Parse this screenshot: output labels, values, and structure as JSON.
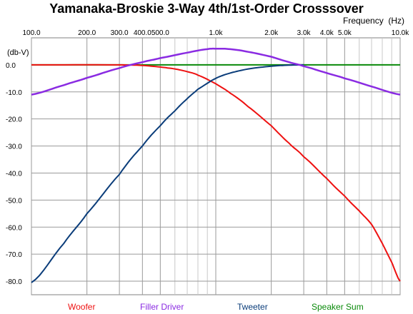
{
  "title": "Yamanaka-Broskie 3-Way 4th/1st-Order Crosssover",
  "x_unit_label": "Frequency  (Hz)",
  "y_unit_label": "(db-V)",
  "colors": {
    "woofer": "#ee1111",
    "filler": "#8a2be2",
    "tweeter": "#0b3d7a",
    "sum": "#0a8a0a",
    "grid": "#9a9a9a",
    "grid_minor": "#c8c8c8"
  },
  "chart_data": {
    "type": "line",
    "title": "Yamanaka-Broskie 3-Way 4th/1st-Order Crosssover",
    "xlabel": "Frequency  (Hz)",
    "ylabel": "(db-V)",
    "x_scale": "log",
    "xlim": [
      100,
      10000
    ],
    "ylim": [
      -85,
      10
    ],
    "grid": true,
    "legend_position": "bottom",
    "x_tick_labels": [
      {
        "value": 100,
        "label": "100.0"
      },
      {
        "value": 200,
        "label": "200.0"
      },
      {
        "value": 300,
        "label": "300.0"
      },
      {
        "value": 400,
        "label": "400.0"
      },
      {
        "value": 500,
        "label": "500.0"
      },
      {
        "value": 1000,
        "label": "1.0k"
      },
      {
        "value": 2000,
        "label": "2.0k"
      },
      {
        "value": 3000,
        "label": "3.0k"
      },
      {
        "value": 4000,
        "label": "4.0k"
      },
      {
        "value": 5000,
        "label": "5.0k"
      },
      {
        "value": 10000,
        "label": "10.0k"
      }
    ],
    "y_tick_labels": [
      {
        "value": 0,
        "label": "0.0"
      },
      {
        "value": -10,
        "label": "-10.0"
      },
      {
        "value": -20,
        "label": "-20.0"
      },
      {
        "value": -30,
        "label": "-30.0"
      },
      {
        "value": -40,
        "label": "-40.0"
      },
      {
        "value": -50,
        "label": "-50.0"
      },
      {
        "value": -60,
        "label": "-60.0"
      },
      {
        "value": -70,
        "label": "-70.0"
      },
      {
        "value": -80,
        "label": "-80.0"
      }
    ],
    "series": [
      {
        "name": "Woofer",
        "color": "#ee1111",
        "points": [
          [
            100,
            0
          ],
          [
            300,
            0
          ],
          [
            400,
            -0.2
          ],
          [
            500,
            -0.8
          ],
          [
            600,
            -1.5
          ],
          [
            700,
            -2.5
          ],
          [
            800,
            -3.8
          ],
          [
            1000,
            -7
          ],
          [
            1200,
            -10.5
          ],
          [
            1500,
            -15.5
          ],
          [
            2000,
            -22.5
          ],
          [
            2500,
            -29
          ],
          [
            3000,
            -34
          ],
          [
            4000,
            -42
          ],
          [
            5000,
            -48.5
          ],
          [
            6000,
            -54
          ],
          [
            7000,
            -59
          ],
          [
            8000,
            -66
          ],
          [
            9000,
            -73
          ],
          [
            10000,
            -80
          ]
        ]
      },
      {
        "name": "Filler Driver",
        "color": "#8a2be2",
        "points": [
          [
            100,
            -11
          ],
          [
            150,
            -7.5
          ],
          [
            200,
            -4.8
          ],
          [
            300,
            -1.2
          ],
          [
            400,
            1
          ],
          [
            500,
            2.5
          ],
          [
            700,
            4.5
          ],
          [
            900,
            5.8
          ],
          [
            1000,
            6
          ],
          [
            1200,
            5.8
          ],
          [
            1500,
            4.8
          ],
          [
            2000,
            3
          ],
          [
            2500,
            1
          ],
          [
            3000,
            -0.5
          ],
          [
            4000,
            -3
          ],
          [
            5000,
            -5
          ],
          [
            7000,
            -8
          ],
          [
            10000,
            -11
          ]
        ]
      },
      {
        "name": "Tweeter",
        "color": "#0b3d7a",
        "points": [
          [
            100,
            -80.5
          ],
          [
            150,
            -66
          ],
          [
            200,
            -55
          ],
          [
            300,
            -40.5
          ],
          [
            400,
            -30
          ],
          [
            500,
            -22.5
          ],
          [
            600,
            -17
          ],
          [
            700,
            -12.5
          ],
          [
            800,
            -9
          ],
          [
            1000,
            -5
          ],
          [
            1200,
            -3
          ],
          [
            1500,
            -1.5
          ],
          [
            2000,
            -0.5
          ],
          [
            2500,
            -0.1
          ],
          [
            3000,
            0
          ]
        ]
      },
      {
        "name": "Speaker Sum",
        "color": "#0a8a0a",
        "points": [
          [
            100,
            0
          ],
          [
            10000,
            0
          ]
        ]
      }
    ]
  }
}
